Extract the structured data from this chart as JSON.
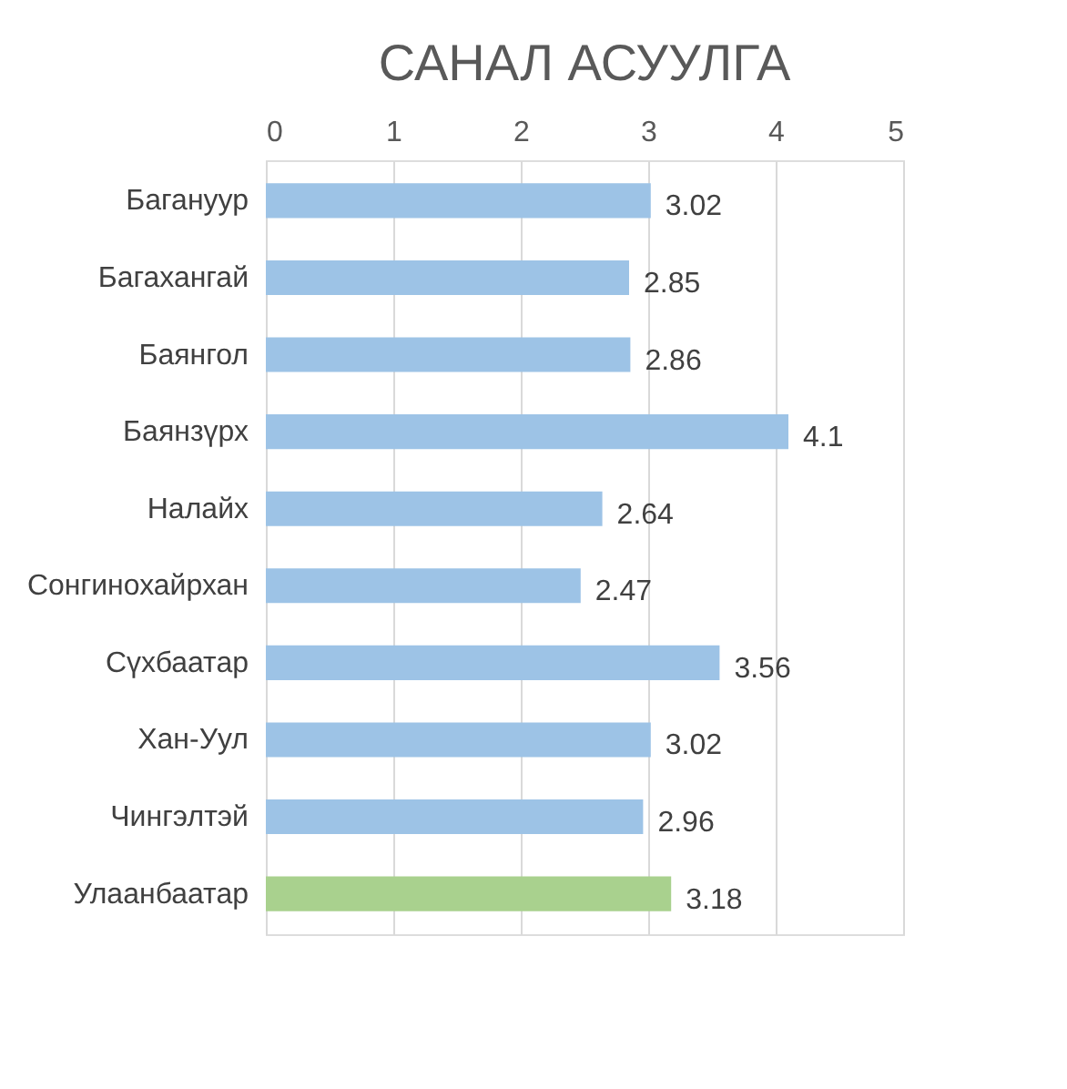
{
  "chart_data": {
    "type": "bar",
    "orientation": "horizontal",
    "title": "САНАЛ АСУУЛГА",
    "categories": [
      "Багануур",
      "Багахангай",
      "Баянгол",
      "Баянзүрх",
      "Налайх",
      "Сонгинохайрхан",
      "Сүхбаатар",
      "Хан-Уул",
      "Чингэлтэй",
      "Улаанбаатар"
    ],
    "values": [
      3.02,
      2.85,
      2.86,
      4.1,
      2.64,
      2.47,
      3.56,
      3.02,
      2.96,
      3.18
    ],
    "colors": [
      "#9dc3e6",
      "#9dc3e6",
      "#9dc3e6",
      "#9dc3e6",
      "#9dc3e6",
      "#9dc3e6",
      "#9dc3e6",
      "#9dc3e6",
      "#9dc3e6",
      "#a9d18e"
    ],
    "xlim": [
      0,
      5
    ],
    "xticks": [
      0,
      1,
      2,
      3,
      4,
      5
    ],
    "grid": "x",
    "data_labels": true
  }
}
